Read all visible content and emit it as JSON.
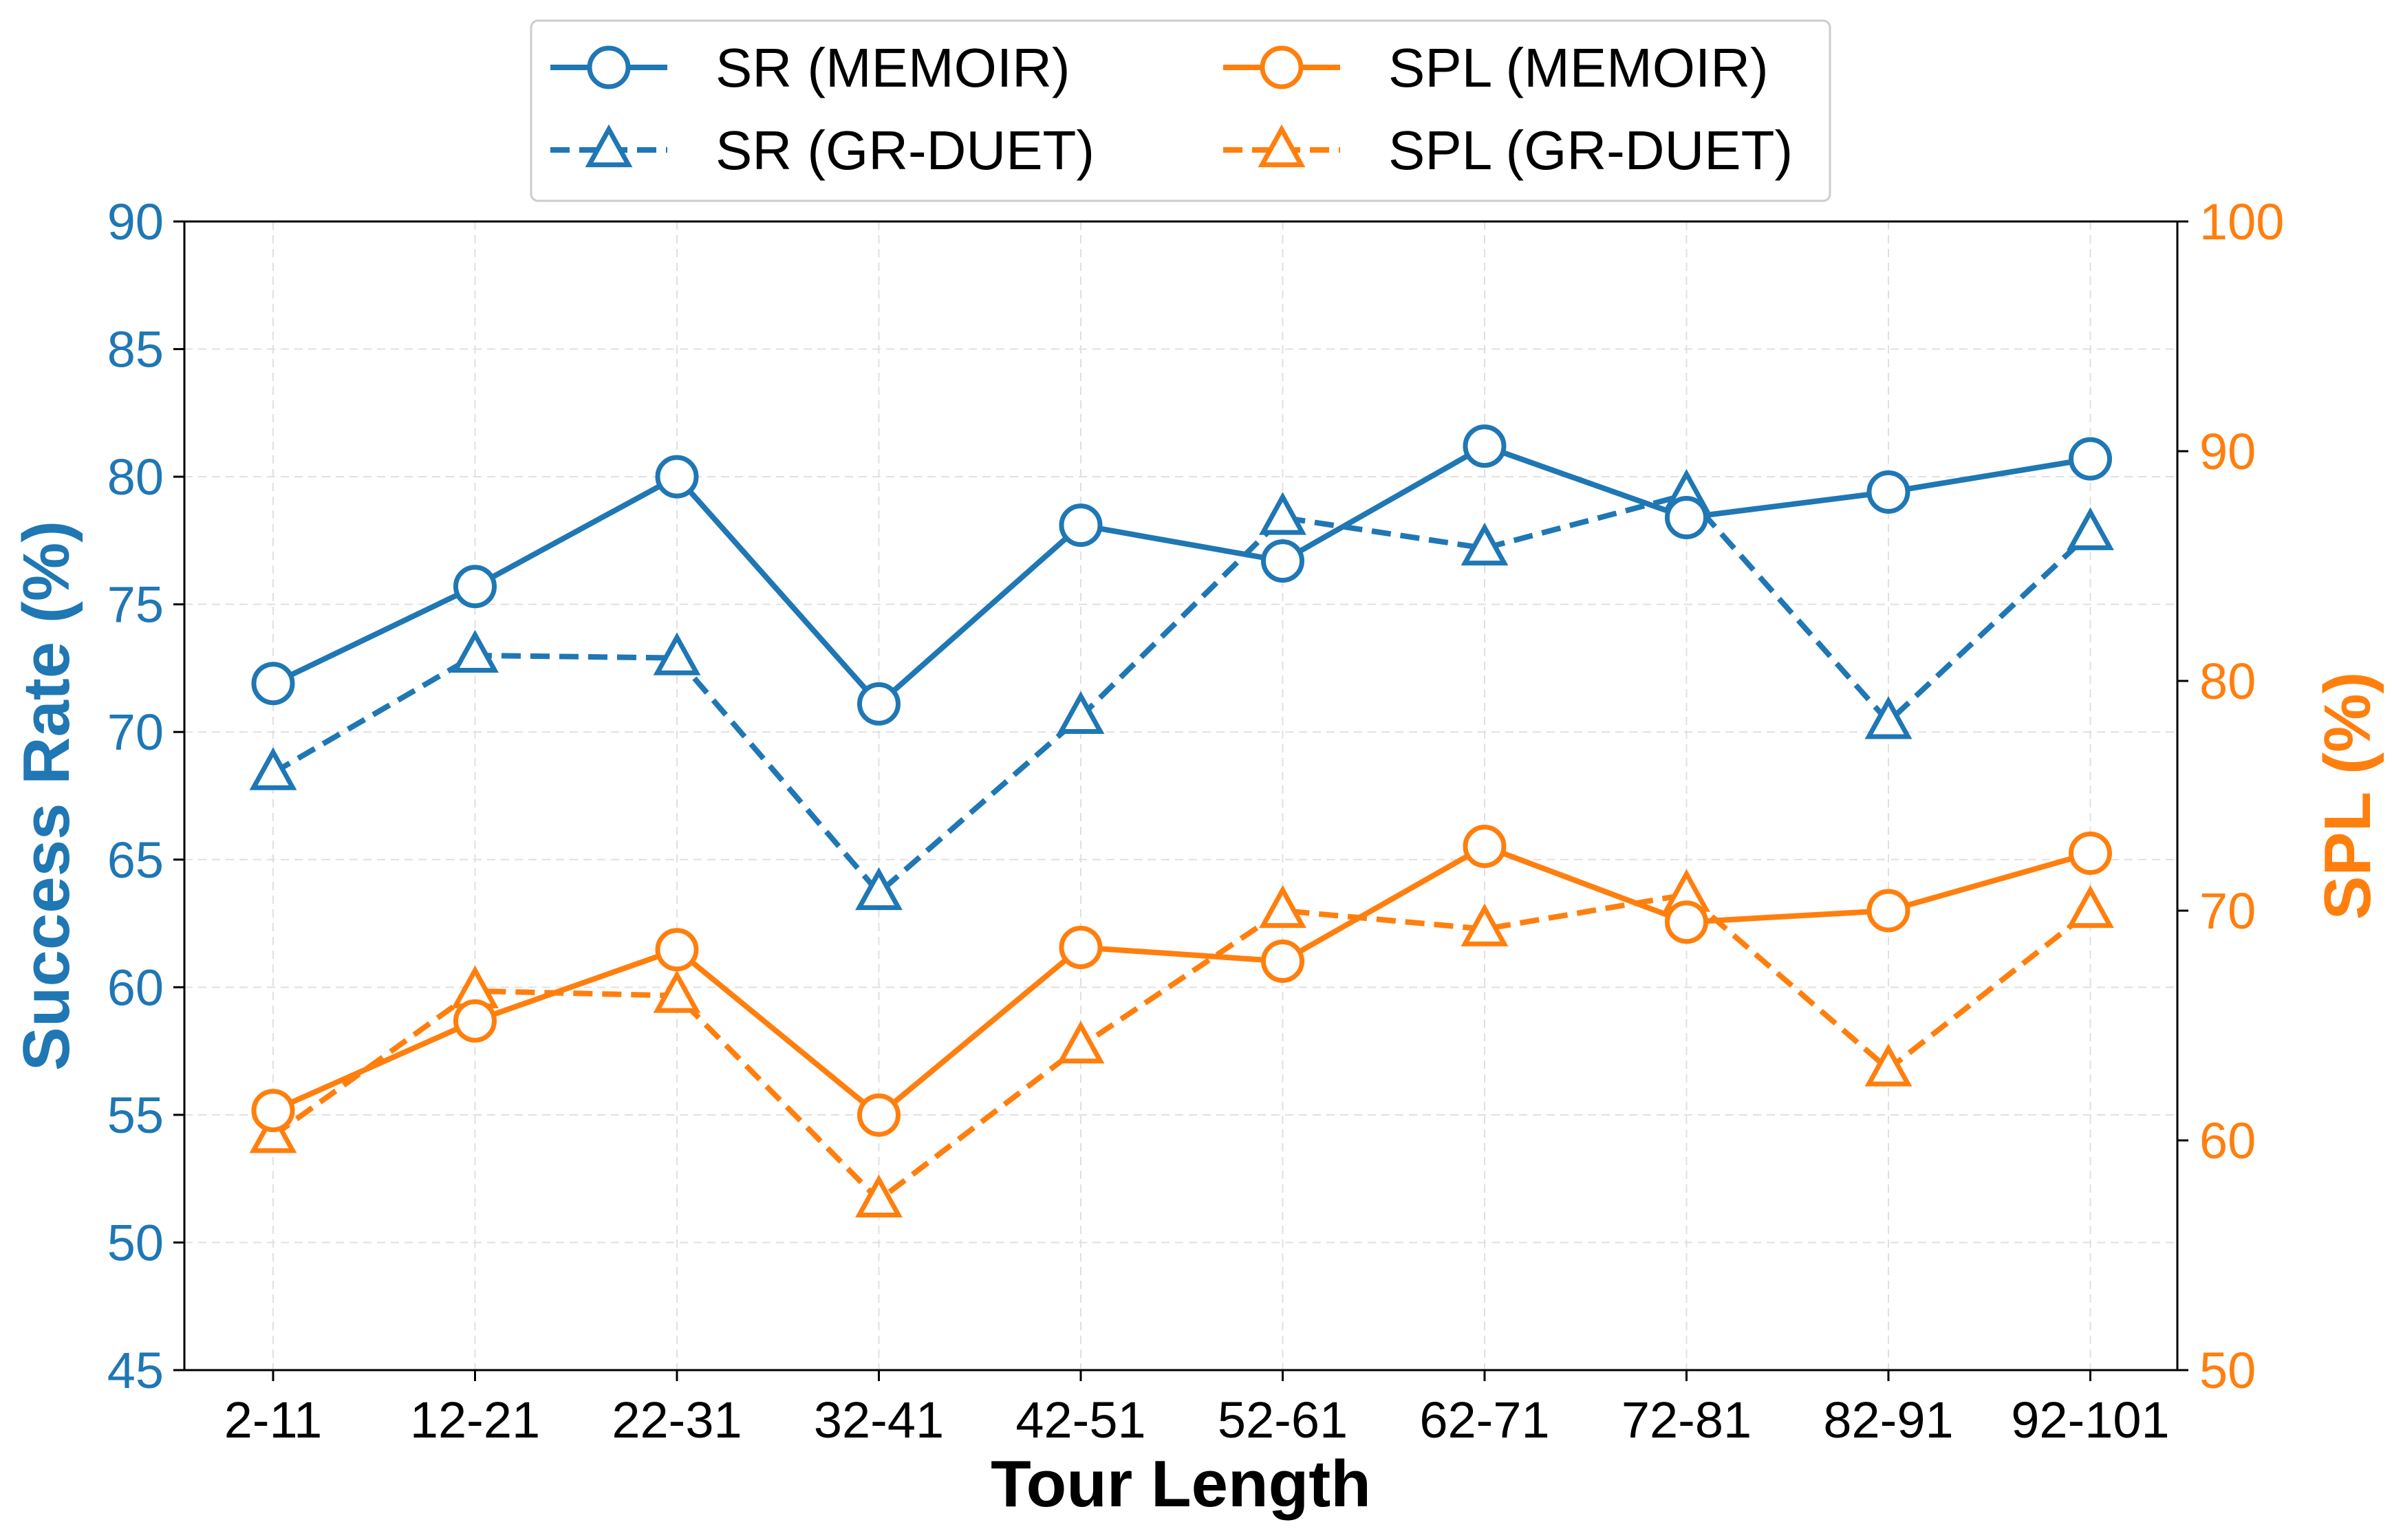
{
  "chart_data": {
    "type": "line",
    "xlabel": "Tour Length",
    "ylabel": "Success Rate (%)",
    "ylabel_right": "SPL (%)",
    "categories": [
      "2-11",
      "12-21",
      "22-31",
      "32-41",
      "42-51",
      "52-61",
      "62-71",
      "72-81",
      "82-91",
      "92-101"
    ],
    "ylim": [
      45,
      90
    ],
    "yticks": [
      45,
      50,
      55,
      60,
      65,
      70,
      75,
      80,
      85,
      90
    ],
    "ylim_right": [
      50,
      100
    ],
    "yticks_right": [
      50,
      60,
      70,
      80,
      90,
      100
    ],
    "grid": true,
    "legend_position": "top-center",
    "colors": {
      "sr": "#1f77b4",
      "spl": "#ff7f0e"
    },
    "series": [
      {
        "name": "SR (MEMOIR)",
        "axis": "left",
        "color": "#1f77b4",
        "line": "solid",
        "marker": "circle",
        "values": [
          71.9,
          75.7,
          80.0,
          71.1,
          78.1,
          76.7,
          81.2,
          78.4,
          79.4,
          80.7
        ]
      },
      {
        "name": "SR (GR-DUET)",
        "axis": "left",
        "color": "#1f77b4",
        "line": "dashed",
        "marker": "triangle",
        "values": [
          68.4,
          73.0,
          72.9,
          63.7,
          70.6,
          78.4,
          77.2,
          79.3,
          70.4,
          77.8
        ]
      },
      {
        "name": "SPL (MEMOIR)",
        "axis": "right",
        "color": "#ff7f0e",
        "line": "solid",
        "marker": "circle",
        "values": [
          61.3,
          65.2,
          68.3,
          61.1,
          68.4,
          67.8,
          72.8,
          69.5,
          70.0,
          72.5
        ]
      },
      {
        "name": "SPL (GR-DUET)",
        "axis": "right",
        "color": "#ff7f0e",
        "line": "dashed",
        "marker": "triangle",
        "values": [
          60.2,
          66.5,
          66.3,
          57.4,
          64.1,
          70.0,
          69.2,
          70.7,
          63.1,
          70.0
        ]
      }
    ]
  }
}
